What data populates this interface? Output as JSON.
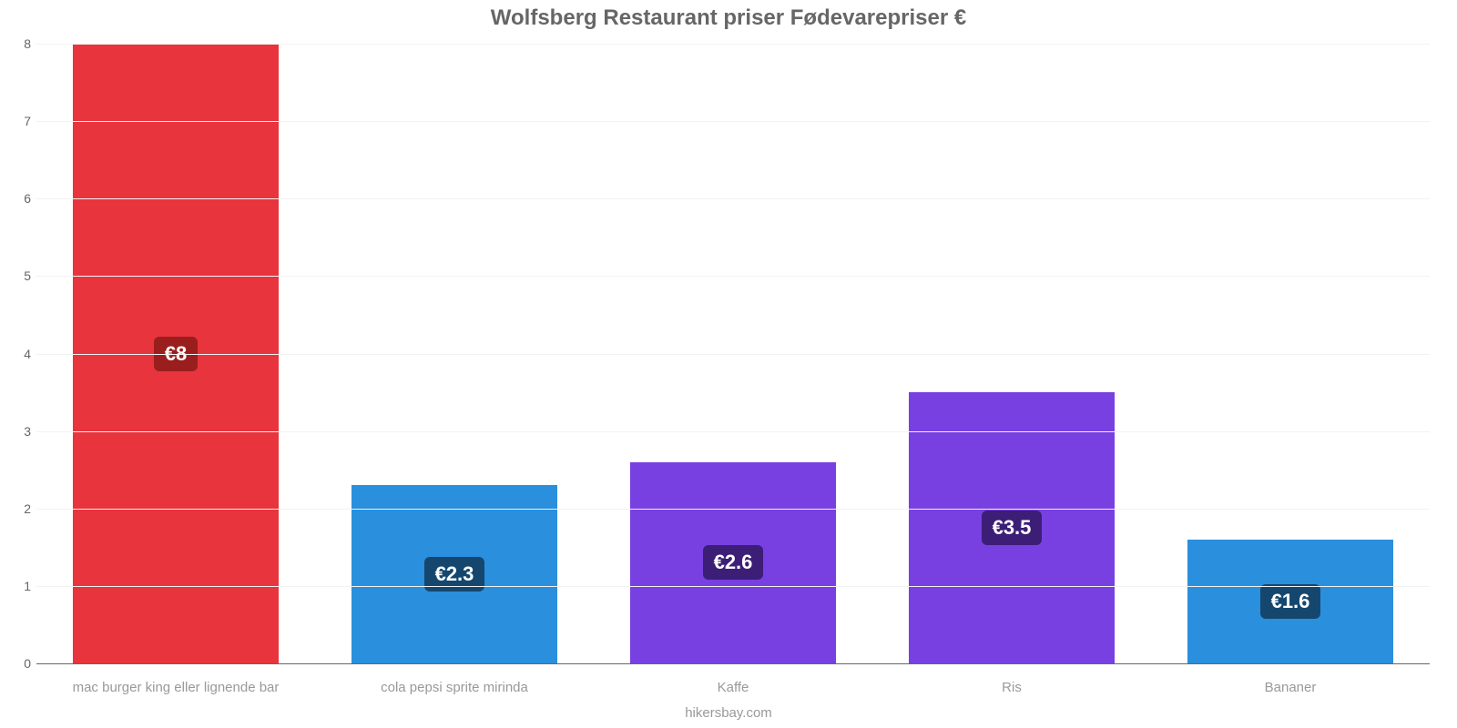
{
  "chart": {
    "type": "bar",
    "title": "Wolfsberg Restaurant priser Fødevarepriser €",
    "title_fontsize": 24,
    "title_color": "#666666",
    "footer": "hikersbay.com",
    "footer_fontsize": 15,
    "footer_color": "#999999",
    "background_color": "#ffffff",
    "grid_color": "#f2f2f2",
    "zero_line_color": "#666666",
    "ylim": [
      0,
      8
    ],
    "ytick_step": 1,
    "ytick_fontsize": 14,
    "ytick_color": "#666666",
    "xlabel_fontsize": 15,
    "xlabel_color": "#999999",
    "bar_width_ratio": 0.74,
    "value_label_fontsize": 22,
    "value_prefix": "€",
    "categories": [
      "mac burger king eller lignende bar",
      "cola pepsi sprite mirinda",
      "Kaffe",
      "Ris",
      "Bananer"
    ],
    "values": [
      8,
      2.3,
      2.6,
      3.5,
      1.6
    ],
    "display_values": [
      "€8",
      "€2.3",
      "€2.6",
      "€3.5",
      "€1.6"
    ],
    "bar_colors": [
      "#e8343d",
      "#2a8fdd",
      "#7840e0",
      "#7840e0",
      "#2a8fdd"
    ],
    "badge_colors": [
      "#9a1e1e",
      "#15476e",
      "#3c1e77",
      "#3c1e77",
      "#15476e"
    ]
  }
}
